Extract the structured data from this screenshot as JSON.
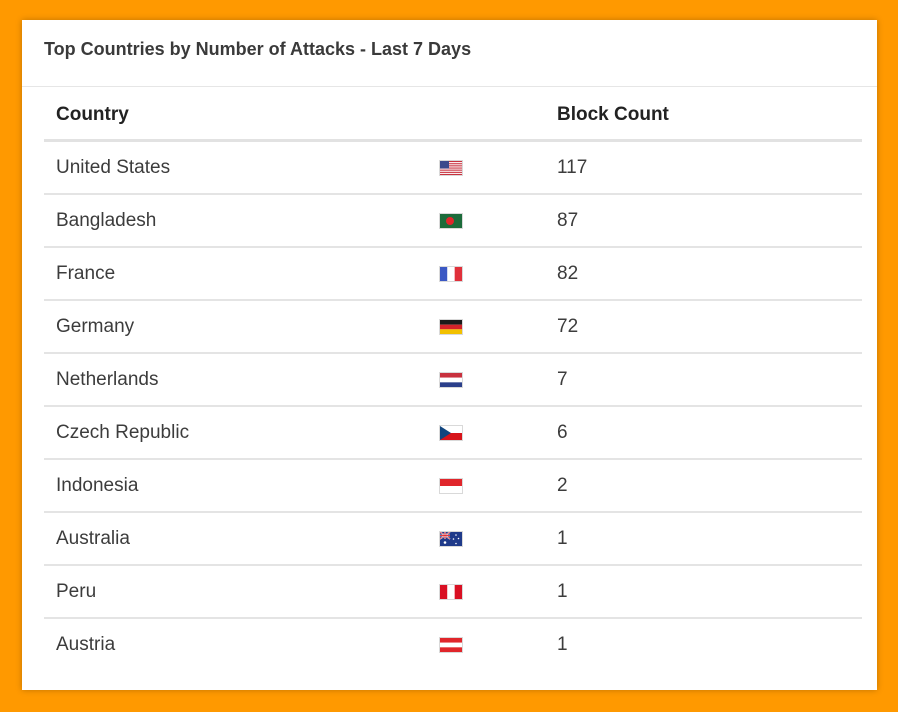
{
  "card": {
    "title": "Top Countries by Number of Attacks - Last 7 Days"
  },
  "table": {
    "headers": {
      "country": "Country",
      "block_count": "Block Count"
    },
    "rows": [
      {
        "country": "United States",
        "flag": "us-flag-icon",
        "count": "117"
      },
      {
        "country": "Bangladesh",
        "flag": "bd-flag-icon",
        "count": "87"
      },
      {
        "country": "France",
        "flag": "fr-flag-icon",
        "count": "82"
      },
      {
        "country": "Germany",
        "flag": "de-flag-icon",
        "count": "72"
      },
      {
        "country": "Netherlands",
        "flag": "nl-flag-icon",
        "count": "7"
      },
      {
        "country": "Czech Republic",
        "flag": "cz-flag-icon",
        "count": "6"
      },
      {
        "country": "Indonesia",
        "flag": "id-flag-icon",
        "count": "2"
      },
      {
        "country": "Australia",
        "flag": "au-flag-icon",
        "count": "1"
      },
      {
        "country": "Peru",
        "flag": "pe-flag-icon",
        "count": "1"
      },
      {
        "country": "Austria",
        "flag": "at-flag-icon",
        "count": "1"
      }
    ]
  },
  "colors": {
    "background": "#ff9900",
    "card": "#ffffff",
    "text": "#333333"
  }
}
